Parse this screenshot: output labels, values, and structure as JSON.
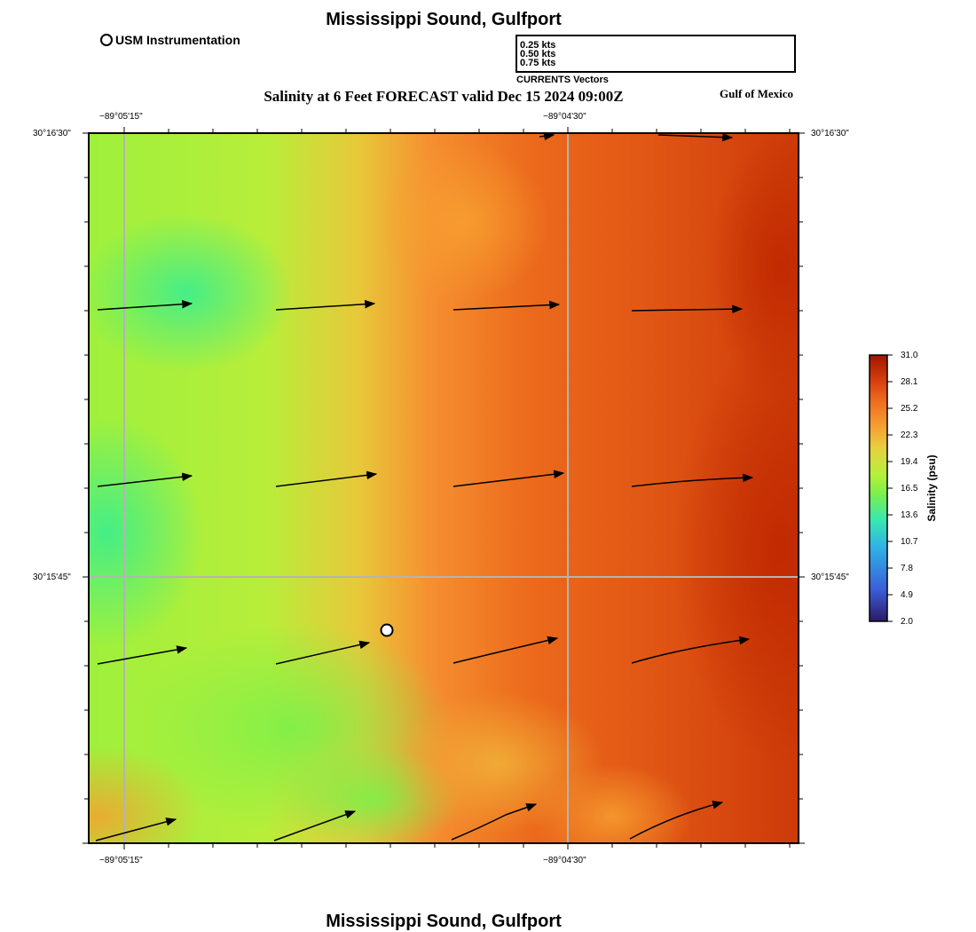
{
  "title": "Mississippi Sound, Gulfport",
  "footer_title": "Mississippi Sound, Gulfport",
  "subtitle": "Salinity at 6 Feet FORECAST valid Dec 15 2024 09:00Z",
  "region_label": "Gulf of Mexico",
  "station_legend": {
    "label": "USM Instrumentation",
    "icon": "open-circle-icon"
  },
  "vector_legend": {
    "entries": [
      "0.25 kts",
      "0.50 kts",
      "0.75 kts"
    ],
    "caption": "CURRENTS Vectors"
  },
  "axes": {
    "top_lon": [
      "−89°05'15\"",
      "−89°04'30\""
    ],
    "bottom_lon": [
      "−89°05'15\"",
      "−89°04'30\""
    ],
    "left_lat": [
      "30°16'30\"",
      "30°15'45\""
    ],
    "right_lat": [
      "30°16'30\"",
      "30°15'45\""
    ]
  },
  "colorbar": {
    "title": "Salinity (psu)",
    "ticks": [
      "31.0",
      "28.1",
      "25.2",
      "22.3",
      "19.4",
      "16.5",
      "13.6",
      "10.7",
      "7.8",
      "4.9",
      "2.0"
    ],
    "colors": [
      "#2b1a66",
      "#3a5fd9",
      "#2fb3e6",
      "#38e8b0",
      "#7cf04a",
      "#b5f03a",
      "#e8d040",
      "#f5a032",
      "#f07020",
      "#d84010",
      "#a01400"
    ]
  },
  "colors": {
    "low_salinity": "#3cf08a",
    "mid_salinity": "#a8f03c",
    "high_salinity": "#e85a12",
    "max_salinity": "#c02800",
    "grid": "#b4b4b4"
  }
}
